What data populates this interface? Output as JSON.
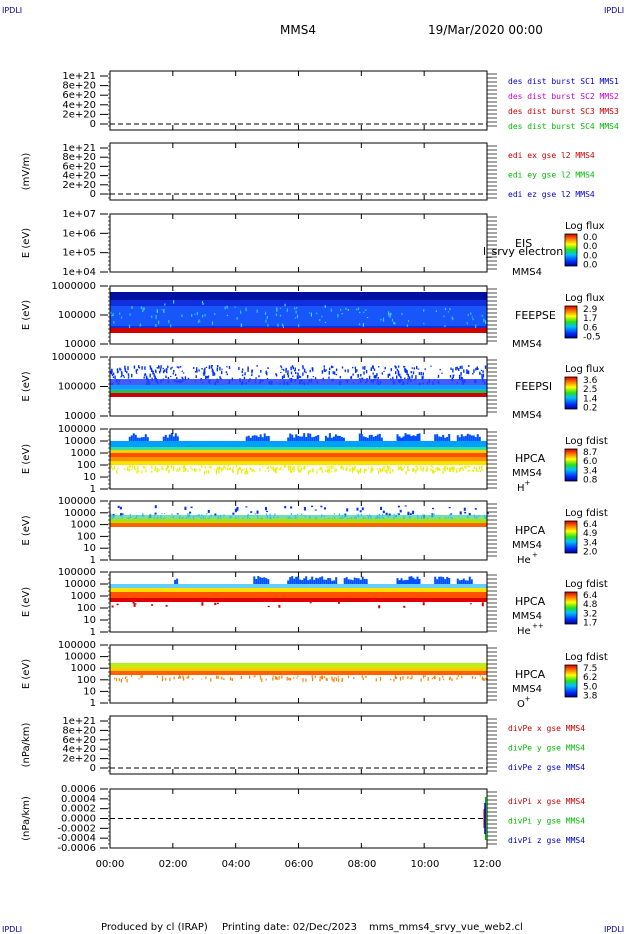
{
  "header": {
    "corner_label": "IPDLI",
    "spacecraft": "MMS4",
    "datetime": "19/Mar/2020 00:00"
  },
  "footer": {
    "produced_by": "Produced by cl (IRAP)",
    "printing_date": "Printing date: 02/Dec/2023",
    "filename": "mms_mms4_srvy_vue_web2.cl"
  },
  "x_axis": {
    "ticks": [
      "00:00",
      "02:00",
      "04:00",
      "06:00",
      "08:00",
      "10:00",
      "12:00"
    ]
  },
  "colors": {
    "mms1": "#0000cc",
    "mms2": "#cc00cc",
    "mms3": "#cc0000",
    "mms4": "#00bb00",
    "x_comp": "#cc0000",
    "y_comp": "#00bb00",
    "z_comp": "#0000cc"
  },
  "chart_data": [
    {
      "type": "line",
      "ylabel": "",
      "yticks": [
        "1e+21",
        "8e+20",
        "6e+20",
        "4e+20",
        "2e+20",
        "0"
      ],
      "ylim": [
        0,
        1e+21
      ],
      "dashed_zero": true,
      "legend": [
        {
          "text": "des dist burst SC1 MMS1",
          "color": "#0000cc"
        },
        {
          "text": "des dist burst SC2 MMS2",
          "color": "#cc00cc"
        },
        {
          "text": "des dist burst SC3 MMS3",
          "color": "#cc0000"
        },
        {
          "text": "des dist burst SC4 MMS4",
          "color": "#00bb00"
        }
      ]
    },
    {
      "type": "line",
      "ylabel": "(mV/m)",
      "yticks": [
        "1e+21",
        "8e+20",
        "6e+20",
        "4e+20",
        "2e+20",
        "0"
      ],
      "ylim": [
        0,
        1e+21
      ],
      "dashed_zero": true,
      "legend": [
        {
          "text": "edi ex gse l2 MMS4",
          "color": "#cc0000"
        },
        {
          "text": "edi ey gse l2 MMS4",
          "color": "#00bb00"
        },
        {
          "text": "edi ez gse l2 MMS4",
          "color": "#0000cc"
        }
      ]
    },
    {
      "type": "heatmap",
      "ylabel": "E (eV)",
      "yticks": [
        "1e+07",
        "1e+06",
        "1e+05",
        "1e+04"
      ],
      "scale": "log",
      "instrument": "EIS",
      "spacecraft": "MMS4",
      "overlay_text": "l_srvy electron to",
      "colorbar_title": "Log flux",
      "colorbar_ticks": [
        "0.0",
        "0.0",
        "0.0",
        "0.0"
      ],
      "pattern": "empty"
    },
    {
      "type": "heatmap",
      "ylabel": "E (eV)",
      "yticks": [
        "1000000",
        "100000",
        "10000"
      ],
      "scale": "log",
      "instrument": "FEEPSE",
      "spacecraft": "MMS4",
      "colorbar_title": "Log flux",
      "colorbar_ticks": [
        "2.9",
        "1.7",
        "0.6",
        "-0.5"
      ],
      "pattern": "feepse"
    },
    {
      "type": "heatmap",
      "ylabel": "E (eV)",
      "yticks": [
        "1000000",
        "100000",
        "10000"
      ],
      "scale": "log",
      "instrument": "FEEPSI",
      "spacecraft": "MMS4",
      "colorbar_title": "Log flux",
      "colorbar_ticks": [
        "3.6",
        "2.5",
        "1.4",
        "0.2"
      ],
      "pattern": "feepsi"
    },
    {
      "type": "heatmap",
      "ylabel": "E (eV)",
      "yticks": [
        "100000",
        "10000",
        "1000",
        "100",
        "10",
        "1"
      ],
      "scale": "log",
      "instrument": "HPCA",
      "spacecraft": "MMS4",
      "species": "H",
      "charge": "+",
      "colorbar_title": "Log fdist",
      "colorbar_ticks": [
        "8.7",
        "6.0",
        "3.4",
        "0.8"
      ],
      "pattern": "hplus"
    },
    {
      "type": "heatmap",
      "ylabel": "E (eV)",
      "yticks": [
        "100000",
        "10000",
        "1000",
        "100",
        "10",
        "1"
      ],
      "scale": "log",
      "instrument": "HPCA",
      "spacecraft": "MMS4",
      "species": "He",
      "charge": "+",
      "colorbar_title": "Log fdist",
      "colorbar_ticks": [
        "6.4",
        "4.9",
        "3.4",
        "2.0"
      ],
      "pattern": "heplus"
    },
    {
      "type": "heatmap",
      "ylabel": "E (eV)",
      "yticks": [
        "100000",
        "10000",
        "1000",
        "100",
        "10",
        "1"
      ],
      "scale": "log",
      "instrument": "HPCA",
      "spacecraft": "MMS4",
      "species": "He",
      "charge": "++",
      "colorbar_title": "Log fdist",
      "colorbar_ticks": [
        "6.4",
        "4.8",
        "3.2",
        "1.7"
      ],
      "pattern": "heplusplus"
    },
    {
      "type": "heatmap",
      "ylabel": "E (eV)",
      "yticks": [
        "100000",
        "10000",
        "1000",
        "100",
        "10",
        "1"
      ],
      "scale": "log",
      "instrument": "HPCA",
      "spacecraft": "MMS4",
      "species": "O",
      "charge": "+",
      "colorbar_title": "Log fdist",
      "colorbar_ticks": [
        "7.5",
        "6.2",
        "5.0",
        "3.8"
      ],
      "pattern": "oplus"
    },
    {
      "type": "line",
      "ylabel": "(nPa/km)",
      "yticks": [
        "1e+21",
        "8e+20",
        "6e+20",
        "4e+20",
        "2e+20",
        "0"
      ],
      "ylim": [
        0,
        1e+21
      ],
      "dashed_zero": true,
      "legend": [
        {
          "text": "divPe x gse MMS4",
          "color": "#cc0000"
        },
        {
          "text": "divPe y gse MMS4",
          "color": "#00bb00"
        },
        {
          "text": "divPe z gse MMS4",
          "color": "#0000cc"
        }
      ]
    },
    {
      "type": "line",
      "ylabel": "(nPa/km)",
      "yticks": [
        "0.0006",
        "0.0004",
        "0.0002",
        "0.0000",
        "-0.0002",
        "-0.0004",
        "-0.0006"
      ],
      "ylim": [
        -0.0006,
        0.0006
      ],
      "dashed_zero": true,
      "legend": [
        {
          "text": "divPi x gse MMS4",
          "color": "#cc0000"
        },
        {
          "text": "divPi y gse MMS4",
          "color": "#00bb00"
        },
        {
          "text": "divPi z gse MMS4",
          "color": "#0000cc"
        }
      ]
    }
  ]
}
